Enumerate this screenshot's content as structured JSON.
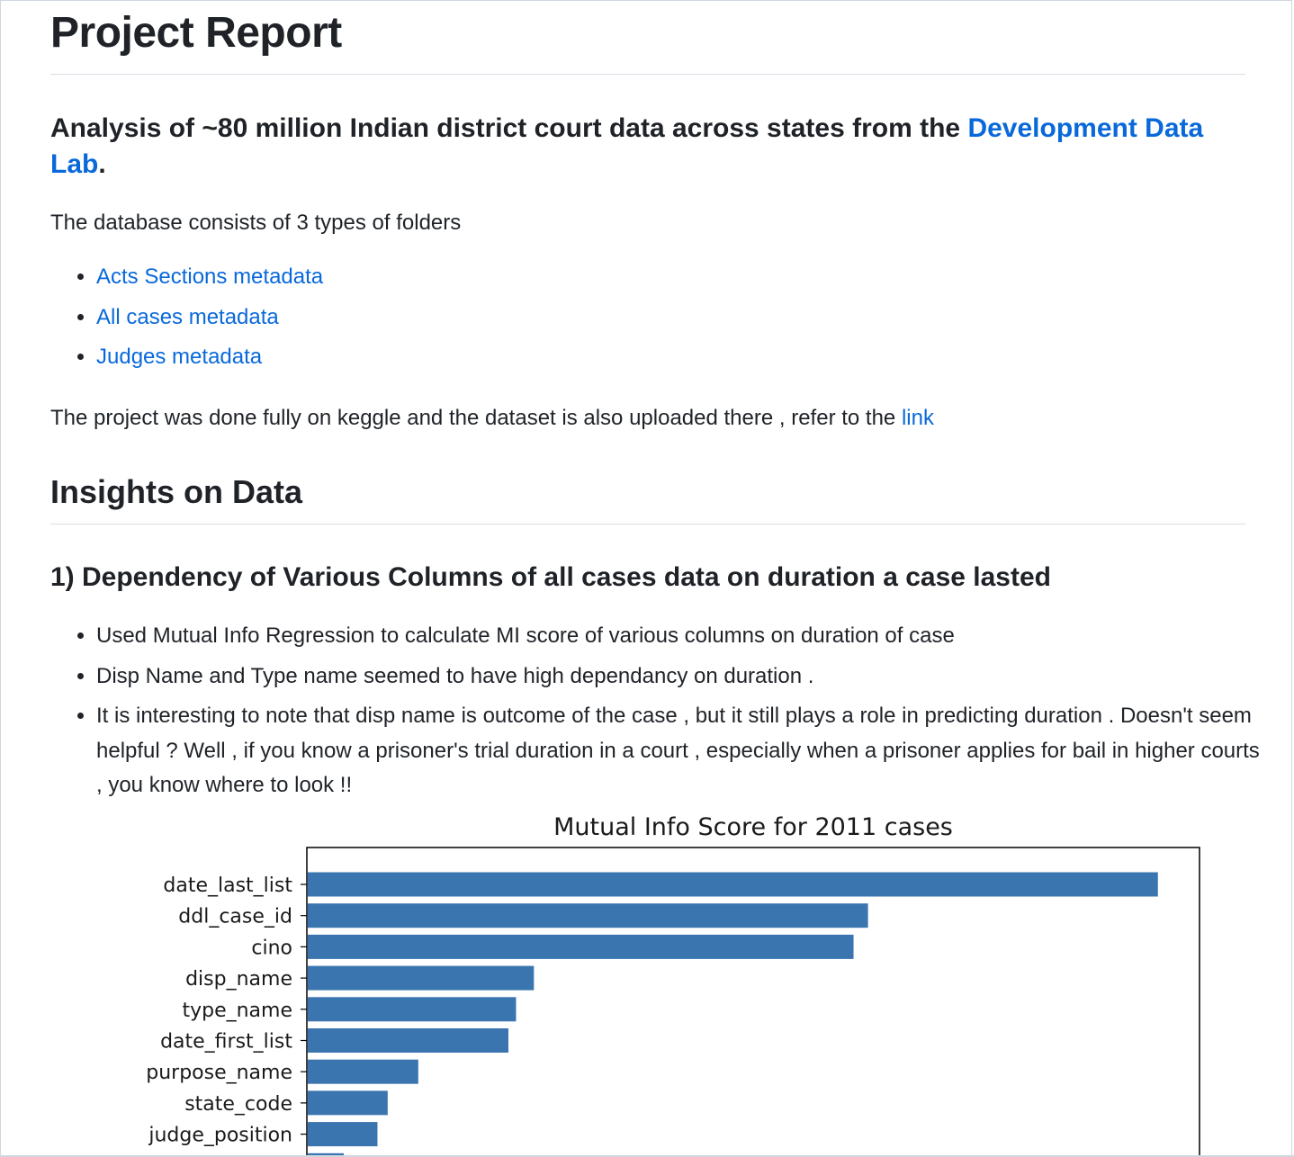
{
  "title": "Project Report",
  "lead": {
    "text": "Analysis of ~80 million Indian district court data across states from the ",
    "link": "Development Data Lab",
    "suffix": "."
  },
  "intro": "The database consists of 3 types of folders",
  "folders": [
    "Acts Sections metadata",
    "All cases metadata",
    "Judges metadata"
  ],
  "project_note": {
    "text": "The project was done fully on keggle and the dataset is also uploaded there , refer to the ",
    "link": "link"
  },
  "insights_heading": "Insights on Data",
  "section1": {
    "heading": "1) Dependency of Various Columns of all cases data on duration a case lasted",
    "bullets": [
      "Used Mutual Info Regression to calculate MI score of various columns on duration of case",
      "Disp Name and Type name seemed to have high dependancy on duration .",
      "It is interesting to note that disp name is outcome of the case , but it still plays a role in predicting duration . Doesn't seem helpful ? Well , if you know a prisoner's trial duration in a court , especially when a prisoner applies for bail in higher courts , you know where to look !!"
    ]
  },
  "colors": {
    "link": "#0969da",
    "bar": "#3a75b0",
    "text": "#1f2328"
  },
  "chart_data": {
    "type": "bar",
    "orientation": "horizontal",
    "title": "Mutual Info Score for 2011 cases",
    "categories": [
      "date_last_list",
      "ddl_case_id",
      "cino",
      "disp_name",
      "type_name",
      "date_first_list",
      "purpose_name",
      "state_code",
      "judge_position"
    ],
    "values": [
      1.0,
      0.659,
      0.642,
      0.266,
      0.245,
      0.236,
      0.13,
      0.094,
      0.082
    ],
    "xlim": [
      0,
      1.05
    ],
    "xlabel": "",
    "ylabel": "",
    "grid": false
  }
}
